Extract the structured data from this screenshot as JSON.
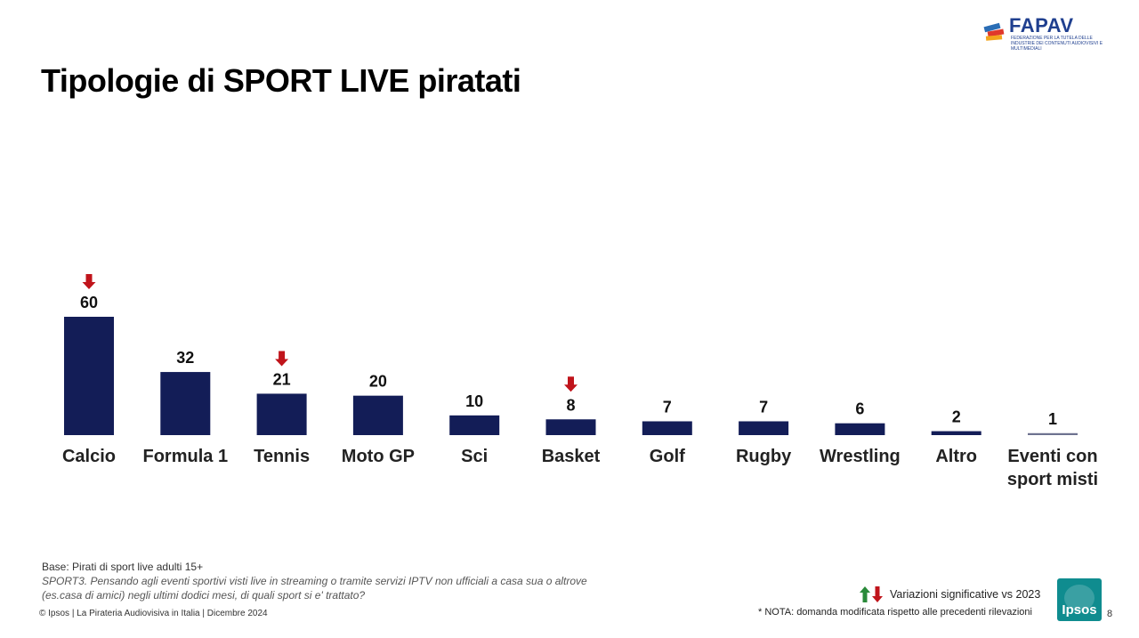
{
  "header": {
    "title": "Tipologie di SPORT LIVE piratati"
  },
  "logo_fapav": {
    "name": "FAPAV",
    "subtitle": "FEDERAZIONE PER LA TUTELA DELLE INDUSTRIE DEI CONTENUTI AUDIOVISIVI E MULTIMEDIALI"
  },
  "chart_data": {
    "type": "bar",
    "title": "Tipologie di SPORT LIVE piratati",
    "xlabel": "",
    "ylabel": "",
    "ylim": [
      0,
      60
    ],
    "categories": [
      "Calcio",
      "Formula 1",
      "Tennis",
      "Moto GP",
      "Sci",
      "Basket",
      "Golf",
      "Rugby",
      "Wrestling",
      "Altro",
      "Eventi con sport misti"
    ],
    "values": [
      60,
      32,
      21,
      20,
      10,
      8,
      7,
      7,
      6,
      2,
      1
    ],
    "significant_decrease": [
      true,
      false,
      true,
      false,
      false,
      true,
      false,
      false,
      false,
      false,
      false
    ],
    "bar_colors": [
      "#131d57",
      "#131d57",
      "#131d57",
      "#131d57",
      "#131d57",
      "#131d57",
      "#131d57",
      "#131d57",
      "#131d57",
      "#131d57",
      "#6e7290"
    ],
    "arrow_color": "#c0141b",
    "grid": false
  },
  "footer": {
    "base": "Base: Pirati di sport live adulti 15+",
    "question_code": "SPORT3.",
    "question_line1": " Pensando agli eventi sportivi visti live in streaming o tramite servizi IPTV non ufficiali a casa sua o altrove",
    "question_line2": "(es.casa di amici) negli ultimi dodici mesi, di quali sport si e' trattato?",
    "copyright": "© Ipsos | La Pirateria Audiovisiva in Italia | Dicembre 2024"
  },
  "legend": {
    "text": "Variazioni significative vs 2023",
    "up_color": "#2a8a3a",
    "down_color": "#c0141b"
  },
  "note": "* NOTA: domanda modificata rispetto alle precedenti rilevazioni",
  "logo_ipsos": {
    "name": "Ipsos",
    "color": "#0f8c8f"
  },
  "page_number": "8"
}
